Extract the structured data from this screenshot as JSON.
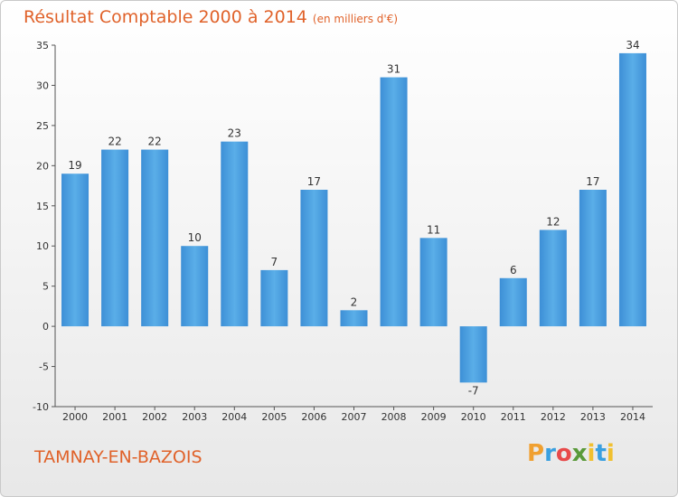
{
  "header": {
    "title": "Résultat Comptable 2000 à 2014",
    "subtitle": "(en milliers d'€)"
  },
  "commune": "TAMNAY-EN-BAZOIS",
  "logo": {
    "p": "P",
    "r": "r",
    "o": "o",
    "x": "x",
    "i": "i",
    "t": "t",
    "i2": "i"
  },
  "colors": {
    "bar": "#4a9fe0",
    "title": "#e0622a",
    "axis": "#555555"
  },
  "chart_data": {
    "type": "bar",
    "title": "Résultat Comptable 2000 à 2014",
    "ylabel": "(en milliers d'€)",
    "xlabel": "",
    "categories": [
      "2000",
      "2001",
      "2002",
      "2003",
      "2004",
      "2005",
      "2006",
      "2007",
      "2008",
      "2009",
      "2010",
      "2011",
      "2012",
      "2013",
      "2014"
    ],
    "values": [
      19,
      22,
      22,
      10,
      23,
      7,
      17,
      2,
      31,
      11,
      -7,
      6,
      12,
      17,
      34
    ],
    "ylim": [
      -10,
      35
    ],
    "yticks": [
      35,
      30,
      25,
      20,
      15,
      10,
      5,
      0,
      -5,
      -10
    ],
    "grid": false
  }
}
